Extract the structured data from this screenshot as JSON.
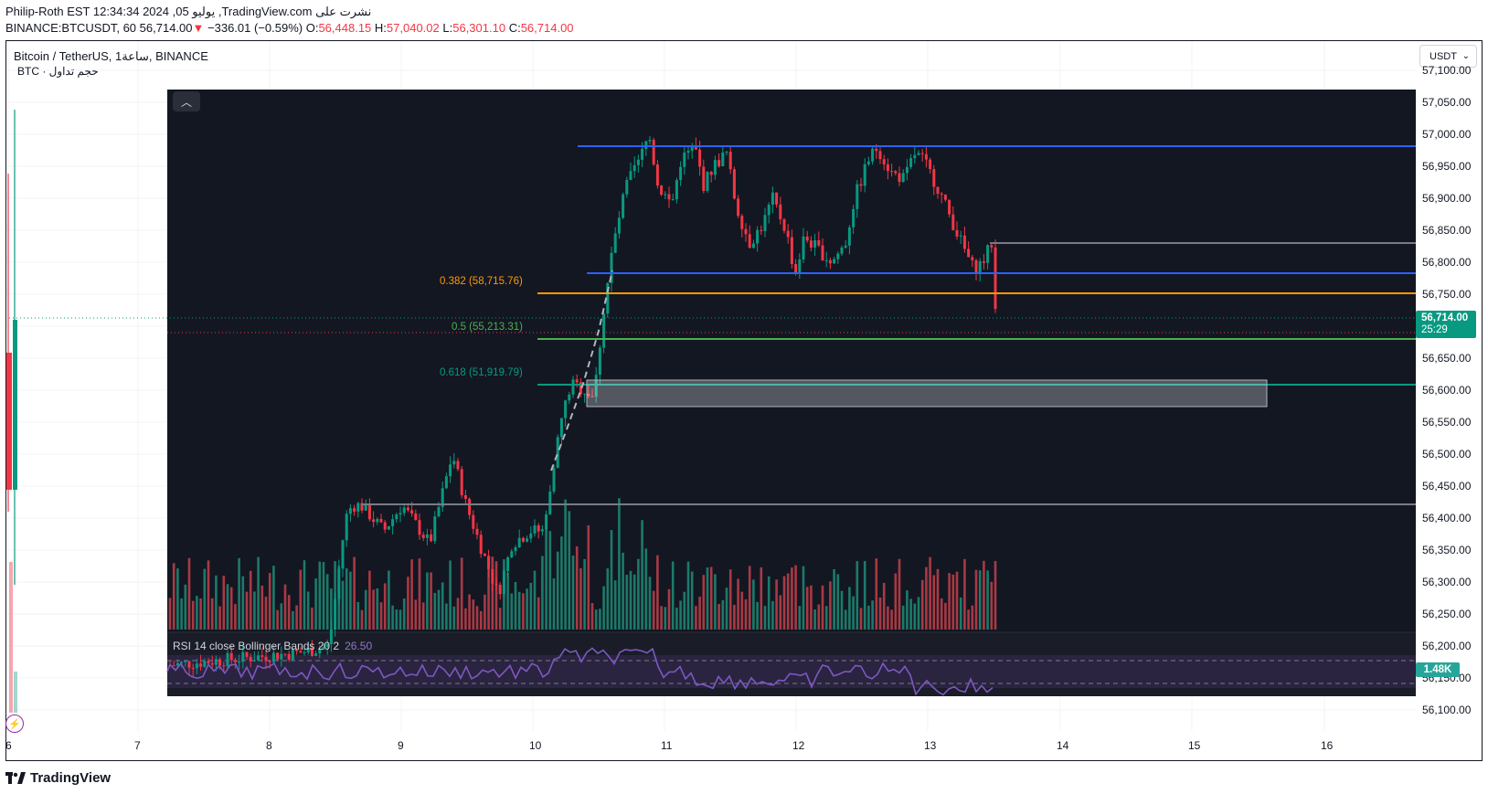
{
  "header": {
    "line1": "Philip-Roth EST 12:34:34 2024 ,05 يوليو ,TradingView.com نشرت على",
    "ticker": "BINANCE:BTCUSDT, 60",
    "last": "56,714.00",
    "change_arrow": "▼",
    "change": "−336.01 (−0.59%)",
    "o_label": "O:",
    "o": "56,448.15",
    "h_label": "H:",
    "h": "57,040.02",
    "l_label": "L:",
    "l": "56,301.10",
    "c_label": "C:",
    "c": "56,714.00"
  },
  "symbol_title": "Bitcoin / TetherUS, 1ساعة, BINANCE",
  "volume_legend": "BTC · حجم تداول",
  "currency_button": "USDT",
  "price_tag": {
    "price": "56,714.00",
    "countdown": "25:29"
  },
  "volume_tag": "1.48K",
  "rsi_legend": {
    "label": "RSI 14 close Bollinger Bands 20 2",
    "value": "26.50"
  },
  "fib_labels": [
    {
      "text": "0.382 (58,715.76)",
      "color": "#ff9800"
    },
    {
      "text": "0.5 (55,213.31)",
      "color": "#4caf50"
    },
    {
      "text": "0.618 (51,919.79)",
      "color": "#089981"
    }
  ],
  "x_axis": [
    "6",
    "7",
    "8",
    "9",
    "10",
    "11",
    "12",
    "13",
    "14",
    "15",
    "16"
  ],
  "y_axis": [
    "57,100.00",
    "57,050.00",
    "57,000.00",
    "56,950.00",
    "56,900.00",
    "56,850.00",
    "56,800.00",
    "56,750.00",
    "56,700.00",
    "56,650.00",
    "56,600.00",
    "56,550.00",
    "56,500.00",
    "56,450.00",
    "56,400.00",
    "56,350.00",
    "56,300.00",
    "56,250.00",
    "56,200.00",
    "56,150.00",
    "56,100.00"
  ],
  "brand": "TradingView",
  "colors": {
    "up": "#089981",
    "down": "#f23645",
    "panel_bg": "#131722",
    "blue_line": "#2962ff",
    "orange_line": "#ff9800",
    "green_line": "#4caf50",
    "teal_line": "#089981",
    "rsi": "#7e57c2"
  },
  "icons": {
    "collapse": "chevron-up-icon",
    "alert": "bolt-icon",
    "dropdown": "chevron-down-icon"
  }
}
